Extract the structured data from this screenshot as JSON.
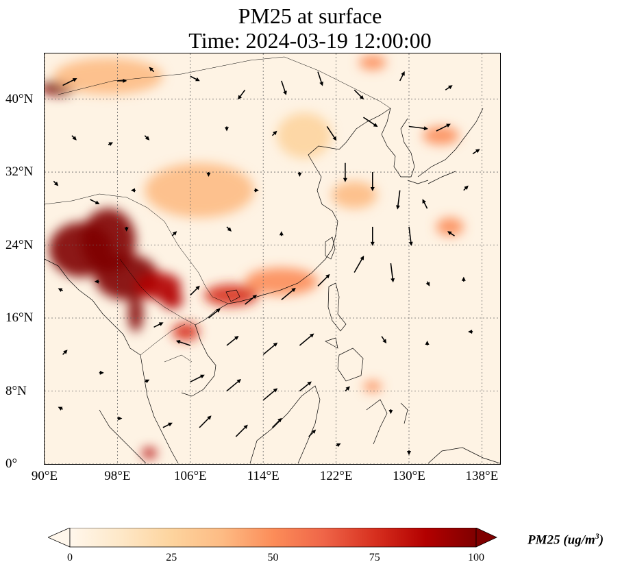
{
  "title": {
    "line1": "PM25 at surface",
    "line2": "Time: 2024-03-19 12:00:00"
  },
  "map": {
    "extent": {
      "lon_min": 90,
      "lon_max": 140,
      "lat_min": 0,
      "lat_max": 45
    },
    "lon_ticks": [
      {
        "lon": 90,
        "label": "90°E"
      },
      {
        "lon": 98,
        "label": "98°E"
      },
      {
        "lon": 106,
        "label": "106°E"
      },
      {
        "lon": 114,
        "label": "114°E"
      },
      {
        "lon": 122,
        "label": "122°E"
      },
      {
        "lon": 130,
        "label": "130°E"
      },
      {
        "lon": 138,
        "label": "138°E"
      }
    ],
    "lat_ticks": [
      {
        "lat": 0,
        "label": "0°"
      },
      {
        "lat": 8,
        "label": "8°N"
      },
      {
        "lat": 16,
        "label": "16°N"
      },
      {
        "lat": 24,
        "label": "24°N"
      },
      {
        "lat": 32,
        "label": "32°N"
      },
      {
        "lat": 40,
        "label": "40°N"
      }
    ],
    "gridlines": "dotted",
    "colormap": "OrRd",
    "pm25_hotspots": [
      {
        "lon": 91.5,
        "lat": 41.2,
        "value": 95,
        "rlon": 2.0,
        "rlat": 0.8
      },
      {
        "lon": 94.0,
        "lat": 23.5,
        "value": 100,
        "rlon": 3.5,
        "rlat": 3.0
      },
      {
        "lon": 97.0,
        "lat": 24.5,
        "value": 100,
        "rlon": 3.0,
        "rlat": 3.5
      },
      {
        "lon": 99.0,
        "lat": 20.5,
        "value": 100,
        "rlon": 3.5,
        "rlat": 2.5
      },
      {
        "lon": 100.0,
        "lat": 16.5,
        "value": 95,
        "rlon": 0.8,
        "rlat": 2.0
      },
      {
        "lon": 102.5,
        "lat": 19.5,
        "value": 90,
        "rlon": 2.5,
        "rlat": 1.5
      },
      {
        "lon": 104.0,
        "lat": 18.0,
        "value": 85,
        "rlon": 1.2,
        "rlat": 1.0
      },
      {
        "lon": 105.5,
        "lat": 14.5,
        "value": 80,
        "rlon": 1.5,
        "rlat": 1.0
      },
      {
        "lon": 110.5,
        "lat": 18.5,
        "value": 70,
        "rlon": 3.0,
        "rlat": 1.2
      },
      {
        "lon": 116.0,
        "lat": 20.0,
        "value": 55,
        "rlon": 4.0,
        "rlat": 1.5
      },
      {
        "lon": 101.5,
        "lat": 1.2,
        "value": 90,
        "rlon": 0.8,
        "rlat": 0.6
      },
      {
        "lon": 124.0,
        "lat": 29.5,
        "value": 40,
        "rlon": 2.5,
        "rlat": 1.5
      },
      {
        "lon": 133.5,
        "lat": 36.0,
        "value": 45,
        "rlon": 2.0,
        "rlat": 1.0
      },
      {
        "lon": 134.5,
        "lat": 26.0,
        "value": 50,
        "rlon": 1.5,
        "rlat": 1.0
      },
      {
        "lon": 107.0,
        "lat": 30.0,
        "value": 35,
        "rlon": 6.0,
        "rlat": 3.0
      },
      {
        "lon": 97.0,
        "lat": 42.5,
        "value": 40,
        "rlon": 6.0,
        "rlat": 2.0
      },
      {
        "lon": 118.5,
        "lat": 36.0,
        "value": 30,
        "rlon": 3.0,
        "rlat": 2.5
      },
      {
        "lon": 126.0,
        "lat": 44.0,
        "value": 45,
        "rlon": 1.5,
        "rlat": 0.8
      },
      {
        "lon": 126.0,
        "lat": 8.5,
        "value": 55,
        "rlon": 1.0,
        "rlat": 0.6
      }
    ],
    "wind_vectors": [
      {
        "lon": 92,
        "lat": 41.5,
        "u": 3,
        "v": 1.5
      },
      {
        "lon": 98,
        "lat": 42,
        "u": 2,
        "v": 0
      },
      {
        "lon": 102,
        "lat": 43,
        "u": -1,
        "v": 1
      },
      {
        "lon": 106,
        "lat": 42.5,
        "u": 2,
        "v": -1
      },
      {
        "lon": 112,
        "lat": 41,
        "u": -1.5,
        "v": -2
      },
      {
        "lon": 116,
        "lat": 42,
        "u": 1,
        "v": -3
      },
      {
        "lon": 120,
        "lat": 43,
        "u": 1,
        "v": -3
      },
      {
        "lon": 124,
        "lat": 41,
        "u": 2,
        "v": -2
      },
      {
        "lon": 129,
        "lat": 42,
        "u": 1,
        "v": 2
      },
      {
        "lon": 134,
        "lat": 41,
        "u": 1.5,
        "v": 1
      },
      {
        "lon": 93,
        "lat": 36,
        "u": 1,
        "v": -1
      },
      {
        "lon": 97,
        "lat": 35,
        "u": 1,
        "v": 0.5
      },
      {
        "lon": 101,
        "lat": 36,
        "u": 1,
        "v": -1
      },
      {
        "lon": 110,
        "lat": 37,
        "u": 0,
        "v": -1
      },
      {
        "lon": 115,
        "lat": 36,
        "u": 1,
        "v": 1
      },
      {
        "lon": 121,
        "lat": 37,
        "u": 2,
        "v": -3
      },
      {
        "lon": 125,
        "lat": 38,
        "u": 3,
        "v": -2
      },
      {
        "lon": 130,
        "lat": 37,
        "u": 4,
        "v": -0.5
      },
      {
        "lon": 133,
        "lat": 36.5,
        "u": 3,
        "v": 1.5
      },
      {
        "lon": 137,
        "lat": 34,
        "u": 1.5,
        "v": 1
      },
      {
        "lon": 91,
        "lat": 31,
        "u": 1,
        "v": -1
      },
      {
        "lon": 95,
        "lat": 29,
        "u": 2,
        "v": -1
      },
      {
        "lon": 100,
        "lat": 30,
        "u": -1,
        "v": 0
      },
      {
        "lon": 108,
        "lat": 32,
        "u": 0,
        "v": -1
      },
      {
        "lon": 113,
        "lat": 30,
        "u": 1,
        "v": 0
      },
      {
        "lon": 118,
        "lat": 32,
        "u": 0,
        "v": -1
      },
      {
        "lon": 123,
        "lat": 33,
        "u": 0,
        "v": -4
      },
      {
        "lon": 126,
        "lat": 32,
        "u": 0,
        "v": -4
      },
      {
        "lon": 129,
        "lat": 30,
        "u": -0.5,
        "v": -4
      },
      {
        "lon": 132,
        "lat": 28,
        "u": -1,
        "v": 2
      },
      {
        "lon": 136,
        "lat": 30,
        "u": 1,
        "v": 1
      },
      {
        "lon": 99,
        "lat": 26,
        "u": 0,
        "v": -1
      },
      {
        "lon": 104,
        "lat": 25,
        "u": 1,
        "v": 1
      },
      {
        "lon": 110,
        "lat": 26,
        "u": 1,
        "v": -1
      },
      {
        "lon": 116,
        "lat": 25,
        "u": 0,
        "v": 1
      },
      {
        "lon": 126,
        "lat": 26,
        "u": 0,
        "v": -4
      },
      {
        "lon": 130,
        "lat": 26,
        "u": 0.5,
        "v": -4
      },
      {
        "lon": 135,
        "lat": 25,
        "u": -1.5,
        "v": 1
      },
      {
        "lon": 106,
        "lat": 18.5,
        "u": 2,
        "v": 2
      },
      {
        "lon": 108,
        "lat": 16,
        "u": 2.5,
        "v": 2
      },
      {
        "lon": 112,
        "lat": 17.5,
        "u": 2.5,
        "v": 2
      },
      {
        "lon": 116,
        "lat": 18,
        "u": 3,
        "v": 2.5
      },
      {
        "lon": 120,
        "lat": 19.5,
        "u": 2.5,
        "v": 2.5
      },
      {
        "lon": 124,
        "lat": 21,
        "u": 2,
        "v": 3.5
      },
      {
        "lon": 128,
        "lat": 22,
        "u": 0.5,
        "v": -4
      },
      {
        "lon": 132,
        "lat": 20,
        "u": 0.5,
        "v": -1
      },
      {
        "lon": 136,
        "lat": 20,
        "u": 0,
        "v": 1
      },
      {
        "lon": 102,
        "lat": 15,
        "u": 2,
        "v": 1
      },
      {
        "lon": 106,
        "lat": 13,
        "u": -3,
        "v": 1
      },
      {
        "lon": 110,
        "lat": 13,
        "u": 2.5,
        "v": 2
      },
      {
        "lon": 114,
        "lat": 12,
        "u": 3,
        "v": 2.5
      },
      {
        "lon": 118,
        "lat": 13,
        "u": 3,
        "v": 2.5
      },
      {
        "lon": 127,
        "lat": 14,
        "u": 1,
        "v": -1.5
      },
      {
        "lon": 132,
        "lat": 13,
        "u": 0,
        "v": 1
      },
      {
        "lon": 137,
        "lat": 14.5,
        "u": -1,
        "v": 0
      },
      {
        "lon": 92,
        "lat": 12,
        "u": 1,
        "v": 1
      },
      {
        "lon": 96,
        "lat": 10,
        "u": 1,
        "v": 0
      },
      {
        "lon": 101,
        "lat": 9,
        "u": 1,
        "v": 0.5
      },
      {
        "lon": 106,
        "lat": 9,
        "u": 3,
        "v": 1.5
      },
      {
        "lon": 110,
        "lat": 8,
        "u": 3,
        "v": 2.5
      },
      {
        "lon": 114,
        "lat": 7,
        "u": 3,
        "v": 2.5
      },
      {
        "lon": 118,
        "lat": 8,
        "u": 2.5,
        "v": 2
      },
      {
        "lon": 123,
        "lat": 8,
        "u": 1,
        "v": 1
      },
      {
        "lon": 128,
        "lat": 6,
        "u": 0,
        "v": -1
      },
      {
        "lon": 92,
        "lat": 6,
        "u": -1,
        "v": 0.5
      },
      {
        "lon": 98,
        "lat": 5,
        "u": 1,
        "v": 0
      },
      {
        "lon": 103,
        "lat": 4,
        "u": 2,
        "v": 1
      },
      {
        "lon": 107,
        "lat": 4,
        "u": 2.5,
        "v": 2.5
      },
      {
        "lon": 111,
        "lat": 3,
        "u": 2.5,
        "v": 2.5
      },
      {
        "lon": 115,
        "lat": 4,
        "u": 2,
        "v": 2
      },
      {
        "lon": 119,
        "lat": 3,
        "u": 1.5,
        "v": 1.5
      },
      {
        "lon": 122,
        "lat": 2,
        "u": 1,
        "v": 0.5
      },
      {
        "lon": 130,
        "lat": 1.5,
        "u": 0,
        "v": -1
      },
      {
        "lon": 96,
        "lat": 20,
        "u": -1,
        "v": 0
      },
      {
        "lon": 92,
        "lat": 19,
        "u": -1,
        "v": 0.5
      }
    ]
  },
  "colorbar": {
    "label_main": "PM25 (ug/m",
    "label_sup": "3",
    "label_end": ")",
    "min": 0,
    "max": 100,
    "extend": "both",
    "ticks": [
      {
        "value": 0,
        "label": "0"
      },
      {
        "value": 25,
        "label": "25"
      },
      {
        "value": 50,
        "label": "50"
      },
      {
        "value": 75,
        "label": "75"
      },
      {
        "value": 100,
        "label": "100"
      }
    ]
  }
}
